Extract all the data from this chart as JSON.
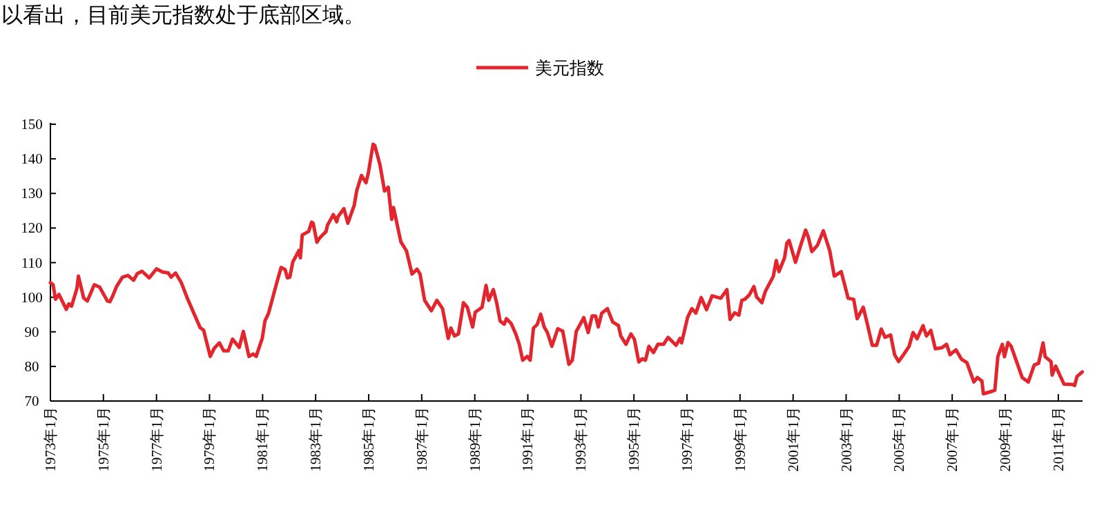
{
  "chart_data": {
    "type": "line",
    "annotations": [
      "以看出，目前美元指数处于底部区域。"
    ],
    "legend": "top",
    "grid": false,
    "xlim": [
      "1973-01-01",
      "2011-12-01"
    ],
    "ylim": [
      70,
      150
    ],
    "yticks": [
      70,
      80,
      90,
      100,
      110,
      120,
      130,
      140,
      150
    ],
    "xticks": [
      {
        "value": "1973-01",
        "label": "1973年1月"
      },
      {
        "value": "1975-01",
        "label": "1975年1月"
      },
      {
        "value": "1977-01",
        "label": "1977年1月"
      },
      {
        "value": "1979-01",
        "label": "1979年1月"
      },
      {
        "value": "1981-01",
        "label": "1981年1月"
      },
      {
        "value": "1983-01",
        "label": "1983年1月"
      },
      {
        "value": "1985-01",
        "label": "1985年1月"
      },
      {
        "value": "1987-01",
        "label": "1987年1月"
      },
      {
        "value": "1989-01",
        "label": "1989年1月"
      },
      {
        "value": "1991-01",
        "label": "1991年1月"
      },
      {
        "value": "1993-01",
        "label": "1993年1月"
      },
      {
        "value": "1995-01",
        "label": "1995年1月"
      },
      {
        "value": "1997-01",
        "label": "1997年1月"
      },
      {
        "value": "1999-01",
        "label": "1999年1月"
      },
      {
        "value": "2001-01",
        "label": "2001年1月"
      },
      {
        "value": "2003-01",
        "label": "2003年1月"
      },
      {
        "value": "2005-01",
        "label": "2005年1月"
      },
      {
        "value": "2007-01",
        "label": "2007年1月"
      },
      {
        "value": "2009-01",
        "label": "2009年1月"
      },
      {
        "value": "2011-01",
        "label": "2011年1月"
      }
    ],
    "x": [
      "1973-01-01",
      "1973-02-07",
      "1973-03-13",
      "1973-04-29",
      "1973-08-07",
      "1973-09-13",
      "1973-10-19",
      "1974-01-01",
      "1974-01-22",
      "1974-04-04",
      "1974-05-25",
      "1974-08-28",
      "1974-11-10",
      "1975-02-25",
      "1975-04-01",
      "1975-05-14",
      "1975-07-01",
      "1975-09-20",
      "1975-12-05",
      "1976-02-21",
      "1976-04-11",
      "1976-06-16",
      "1976-09-23",
      "1977-01-01",
      "1977-03-23",
      "1977-06-13",
      "1977-07-22",
      "1977-09-20",
      "1977-12-09",
      "1978-02-28",
      "1978-08-25",
      "1978-10-11",
      "1979-01-11",
      "1979-03-05",
      "1979-05-17",
      "1979-07-15",
      "1979-09-16",
      "1979-11-14",
      "1980-02-14",
      "1980-04-11",
      "1980-06-27",
      "1980-08-25",
      "1980-10-04",
      "1980-12-27",
      "1981-02-03",
      "1981-03-23",
      "1981-07-15",
      "1981-09-13",
      "1981-11-07",
      "1981-12-09",
      "1982-01-11",
      "1982-02-21",
      "1982-05-17",
      "1982-06-05",
      "1982-07-01",
      "1982-09-27",
      "1982-11-07",
      "1982-11-28",
      "1983-01-19",
      "1983-03-05",
      "1983-05-25",
      "1983-06-13",
      "1983-09-02",
      "1983-10-19",
      "1983-11-03",
      "1984-01-26",
      "1984-03-20",
      "1984-06-16",
      "1984-07-19",
      "1984-09-23",
      "1984-11-25",
      "1984-12-27",
      "1985-03-02",
      "1985-03-27",
      "1985-06-05",
      "1985-08-07",
      "1985-09-27",
      "1985-11-14",
      "1985-12-09",
      "1986-03-20",
      "1986-06-05",
      "1986-08-21",
      "1986-10-29",
      "1986-12-09",
      "1987-02-10",
      "1987-05-14",
      "1987-07-29",
      "1987-10-15",
      "1988-01-01",
      "1988-02-07",
      "1988-03-27",
      "1988-05-21",
      "1988-07-29",
      "1988-09-20",
      "1988-12-02",
      "1989-01-08",
      "1989-04-11",
      "1989-06-05",
      "1989-07-11",
      "1989-09-13",
      "1989-10-29",
      "1989-12-16",
      "1990-02-10",
      "1990-03-13",
      "1990-05-17",
      "1990-07-19",
      "1990-09-05",
      "1990-10-22",
      "1990-12-23",
      "1991-02-03",
      "1991-03-20",
      "1991-05-10",
      "1991-06-27",
      "1991-08-14",
      "1991-09-27",
      "1991-11-28",
      "1992-02-17",
      "1992-04-26",
      "1992-07-19",
      "1992-09-05",
      "1992-10-29",
      "1993-02-10",
      "1993-04-11",
      "1993-06-05",
      "1993-07-22",
      "1993-08-28",
      "1993-10-15",
      "1994-01-01",
      "1994-03-16",
      "1994-06-02",
      "1994-07-04",
      "1994-09-13",
      "1994-11-21",
      "1995-01-08",
      "1995-03-09",
      "1995-04-26",
      "1995-06-09",
      "1995-07-26",
      "1995-09-27",
      "1995-11-28",
      "1996-02-14",
      "1996-04-15",
      "1996-08-03",
      "1996-09-27",
      "1996-10-19",
      "1997-01-08",
      "1997-03-09",
      "1997-05-03",
      "1997-07-15",
      "1997-09-27",
      "1997-12-13",
      "1998-04-11",
      "1998-07-04",
      "1998-08-17",
      "1998-10-19",
      "1998-12-16",
      "1999-01-26",
      "1999-03-09",
      "1999-05-10",
      "1999-07-11",
      "1999-08-17",
      "1999-10-29",
      "1999-12-16",
      "2000-04-04",
      "2000-05-14",
      "2000-06-20",
      "2000-09-05",
      "2000-10-08",
      "2000-11-07",
      "2001-02-03",
      "2001-04-11",
      "2001-06-23",
      "2001-07-29",
      "2001-09-16",
      "2001-12-02",
      "2002-02-21",
      "2002-05-21",
      "2002-07-22",
      "2002-10-26",
      "2003-01-29",
      "2003-04-15",
      "2003-06-02",
      "2003-08-25",
      "2003-10-22",
      "2003-12-27",
      "2004-02-25",
      "2004-04-29",
      "2004-06-20",
      "2004-09-05",
      "2004-10-29",
      "2004-12-23",
      "2005-03-02",
      "2005-05-17",
      "2005-07-11",
      "2005-09-05",
      "2005-11-25",
      "2006-01-11",
      "2006-03-13",
      "2006-05-14",
      "2006-08-14",
      "2006-10-15",
      "2006-12-02",
      "2007-02-21",
      "2007-05-07",
      "2007-07-22",
      "2007-10-26",
      "2007-12-13",
      "2008-02-14",
      "2008-03-05",
      "2008-07-01",
      "2008-08-10",
      "2008-09-20",
      "2008-11-21",
      "2008-12-20",
      "2009-02-07",
      "2009-03-23",
      "2009-06-27",
      "2009-08-21",
      "2009-11-14",
      "2010-02-03",
      "2010-04-04",
      "2010-06-05",
      "2010-07-04",
      "2010-09-23",
      "2010-10-08",
      "2010-11-25",
      "2011-03-20",
      "2011-07-15",
      "2011-08-14",
      "2011-09-16",
      "2011-11-27"
    ],
    "series": [
      {
        "name": "美元指数",
        "color": "#e3262e",
        "values": [
          104.2,
          103.6,
          99.4,
          100.8,
          96.5,
          98.1,
          97.4,
          102.5,
          106.1,
          99.8,
          98.9,
          103.6,
          102.9,
          98.9,
          98.7,
          100.6,
          103.1,
          105.8,
          106.3,
          104.9,
          106.8,
          107.5,
          105.6,
          108.2,
          107.3,
          107.0,
          105.8,
          107.0,
          104.2,
          99.8,
          91.2,
          90.5,
          82.9,
          85.2,
          86.8,
          84.5,
          84.5,
          87.9,
          85.5,
          90.1,
          82.9,
          83.6,
          82.9,
          88.1,
          93.2,
          95.3,
          104.2,
          108.6,
          108.0,
          105.6,
          105.8,
          110.2,
          113.5,
          111.4,
          118.0,
          119.0,
          121.7,
          121.4,
          115.9,
          117.3,
          119.0,
          120.8,
          123.9,
          121.8,
          123.2,
          125.6,
          121.4,
          126.6,
          130.7,
          135.2,
          133.1,
          135.9,
          144.2,
          143.8,
          138.3,
          130.7,
          131.8,
          122.5,
          125.9,
          116.0,
          113.4,
          106.7,
          108.1,
          106.7,
          99.1,
          96.1,
          99.1,
          96.7,
          88.1,
          91.1,
          88.8,
          89.4,
          98.4,
          97.1,
          91.4,
          95.7,
          97.1,
          103.4,
          99.1,
          102.2,
          98.4,
          93.1,
          92.2,
          93.8,
          92.4,
          89.4,
          86.4,
          81.8,
          82.9,
          81.8,
          91.1,
          92.1,
          95.1,
          91.4,
          89.8,
          85.8,
          90.9,
          90.2,
          80.6,
          81.8,
          90.1,
          94.1,
          89.8,
          94.6,
          94.6,
          91.4,
          95.4,
          96.7,
          92.8,
          91.8,
          88.8,
          86.4,
          89.4,
          87.8,
          81.3,
          82.2,
          81.8,
          85.8,
          84.0,
          86.4,
          86.4,
          88.4,
          86.1,
          88.1,
          86.8,
          94.1,
          96.7,
          95.4,
          99.9,
          96.4,
          100.4,
          99.7,
          102.2,
          93.6,
          95.5,
          94.8,
          99.1,
          99.4,
          100.7,
          103.1,
          100.1,
          98.4,
          101.7,
          106.1,
          110.6,
          107.4,
          111.4,
          115.7,
          116.4,
          110.1,
          114.7,
          119.4,
          117.4,
          113.2,
          115.0,
          119.2,
          113.4,
          106.1,
          107.4,
          99.7,
          99.4,
          93.8,
          97.1,
          92.1,
          86.1,
          86.1,
          90.8,
          88.4,
          89.1,
          83.4,
          81.4,
          83.4,
          85.8,
          89.8,
          88.0,
          91.8,
          88.8,
          90.4,
          85.1,
          85.4,
          86.4,
          83.4,
          84.8,
          82.1,
          81.1,
          75.5,
          76.8,
          75.8,
          72.1,
          72.8,
          73.1,
          82.8,
          86.4,
          82.8,
          86.9,
          85.8,
          80.1,
          76.8,
          75.5,
          80.4,
          80.9,
          86.8,
          82.8,
          81.4,
          77.5,
          80.1,
          74.9,
          74.8,
          74.5,
          77.1,
          78.4
        ]
      }
    ]
  }
}
